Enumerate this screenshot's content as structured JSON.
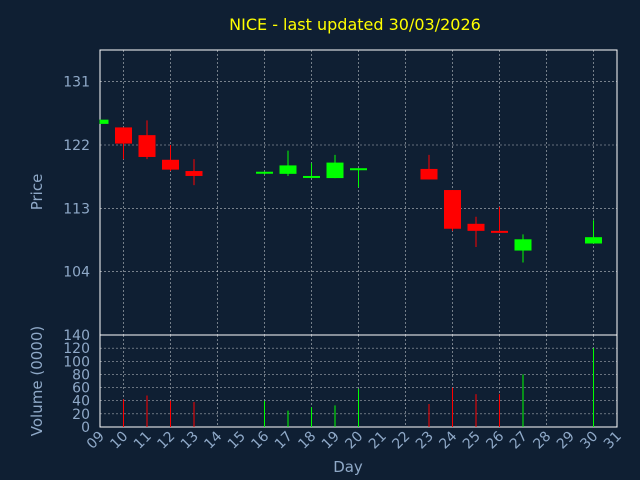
{
  "chart_data": {
    "type": "candlestick",
    "title": "NICE - last updated 30/03/2026",
    "xlabel": "Day",
    "price_panel": {
      "ylabel": "Price",
      "ylim": [
        135.5,
        95
      ],
      "yticks": [
        131,
        122,
        113,
        104
      ],
      "grid": true
    },
    "volume_panel": {
      "ylabel": "Volume (0000)",
      "ylim": [
        0,
        140
      ],
      "yticks": [
        140,
        120,
        100,
        80,
        60,
        40,
        20,
        0
      ],
      "grid": true
    },
    "x_ticks": [
      "09",
      "10",
      "11",
      "12",
      "13",
      "14",
      "15",
      "16",
      "17",
      "18",
      "19",
      "20",
      "21",
      "22",
      "23",
      "24",
      "25",
      "26",
      "27",
      "28",
      "29",
      "30",
      "31"
    ],
    "colors": {
      "up": "#00ff00",
      "down": "#ff0000",
      "title": "#ffff00",
      "axis_text": "#8fa9c8",
      "grid": "#ffffff"
    },
    "candles": [
      {
        "day": "09",
        "open": 125.0,
        "close": 125.6,
        "high": 125.6,
        "low": 125.0
      },
      {
        "day": "10",
        "open": 124.5,
        "close": 122.2,
        "high": 124.5,
        "low": 120.0
      },
      {
        "day": "11",
        "open": 123.4,
        "close": 120.3,
        "high": 125.5,
        "low": 120.0
      },
      {
        "day": "12",
        "open": 119.9,
        "close": 118.5,
        "high": 122.0,
        "low": 118.3
      },
      {
        "day": "13",
        "open": 118.3,
        "close": 117.6,
        "high": 120.0,
        "low": 116.3
      },
      {
        "day": "16",
        "open": 118.0,
        "close": 118.2,
        "high": 118.2,
        "low": 117.8
      },
      {
        "day": "17",
        "open": 117.9,
        "close": 119.1,
        "high": 121.2,
        "low": 117.6
      },
      {
        "day": "18",
        "open": 117.4,
        "close": 117.6,
        "high": 119.4,
        "low": 117.3
      },
      {
        "day": "19",
        "open": 117.3,
        "close": 119.5,
        "high": 120.6,
        "low": 117.3
      },
      {
        "day": "20",
        "open": 118.5,
        "close": 118.7,
        "high": 118.7,
        "low": 116.0
      },
      {
        "day": "23",
        "open": 118.6,
        "close": 117.1,
        "high": 120.6,
        "low": 117.1
      },
      {
        "day": "24",
        "open": 115.6,
        "close": 110.1,
        "high": 115.6,
        "low": 109.8
      },
      {
        "day": "25",
        "open": 110.8,
        "close": 109.8,
        "high": 111.8,
        "low": 107.5
      },
      {
        "day": "26",
        "open": 109.8,
        "close": 109.6,
        "high": 113.2,
        "low": 109.5
      },
      {
        "day": "27",
        "open": 107.0,
        "close": 108.6,
        "high": 109.3,
        "low": 105.3
      },
      {
        "day": "30",
        "open": 108.0,
        "close": 108.9,
        "high": 111.3,
        "low": 108.0
      }
    ],
    "volume": [
      {
        "day": "10",
        "value": 42,
        "dir": "down"
      },
      {
        "day": "11",
        "value": 48,
        "dir": "down"
      },
      {
        "day": "12",
        "value": 40,
        "dir": "down"
      },
      {
        "day": "13",
        "value": 38,
        "dir": "down"
      },
      {
        "day": "16",
        "value": 40,
        "dir": "up"
      },
      {
        "day": "17",
        "value": 25,
        "dir": "up"
      },
      {
        "day": "18",
        "value": 30,
        "dir": "up"
      },
      {
        "day": "19",
        "value": 33,
        "dir": "up"
      },
      {
        "day": "20",
        "value": 58,
        "dir": "up"
      },
      {
        "day": "23",
        "value": 35,
        "dir": "down"
      },
      {
        "day": "24",
        "value": 60,
        "dir": "down"
      },
      {
        "day": "25",
        "value": 50,
        "dir": "down"
      },
      {
        "day": "26",
        "value": 50,
        "dir": "down"
      },
      {
        "day": "27",
        "value": 80,
        "dir": "up"
      },
      {
        "day": "30",
        "value": 120,
        "dir": "up"
      }
    ]
  }
}
